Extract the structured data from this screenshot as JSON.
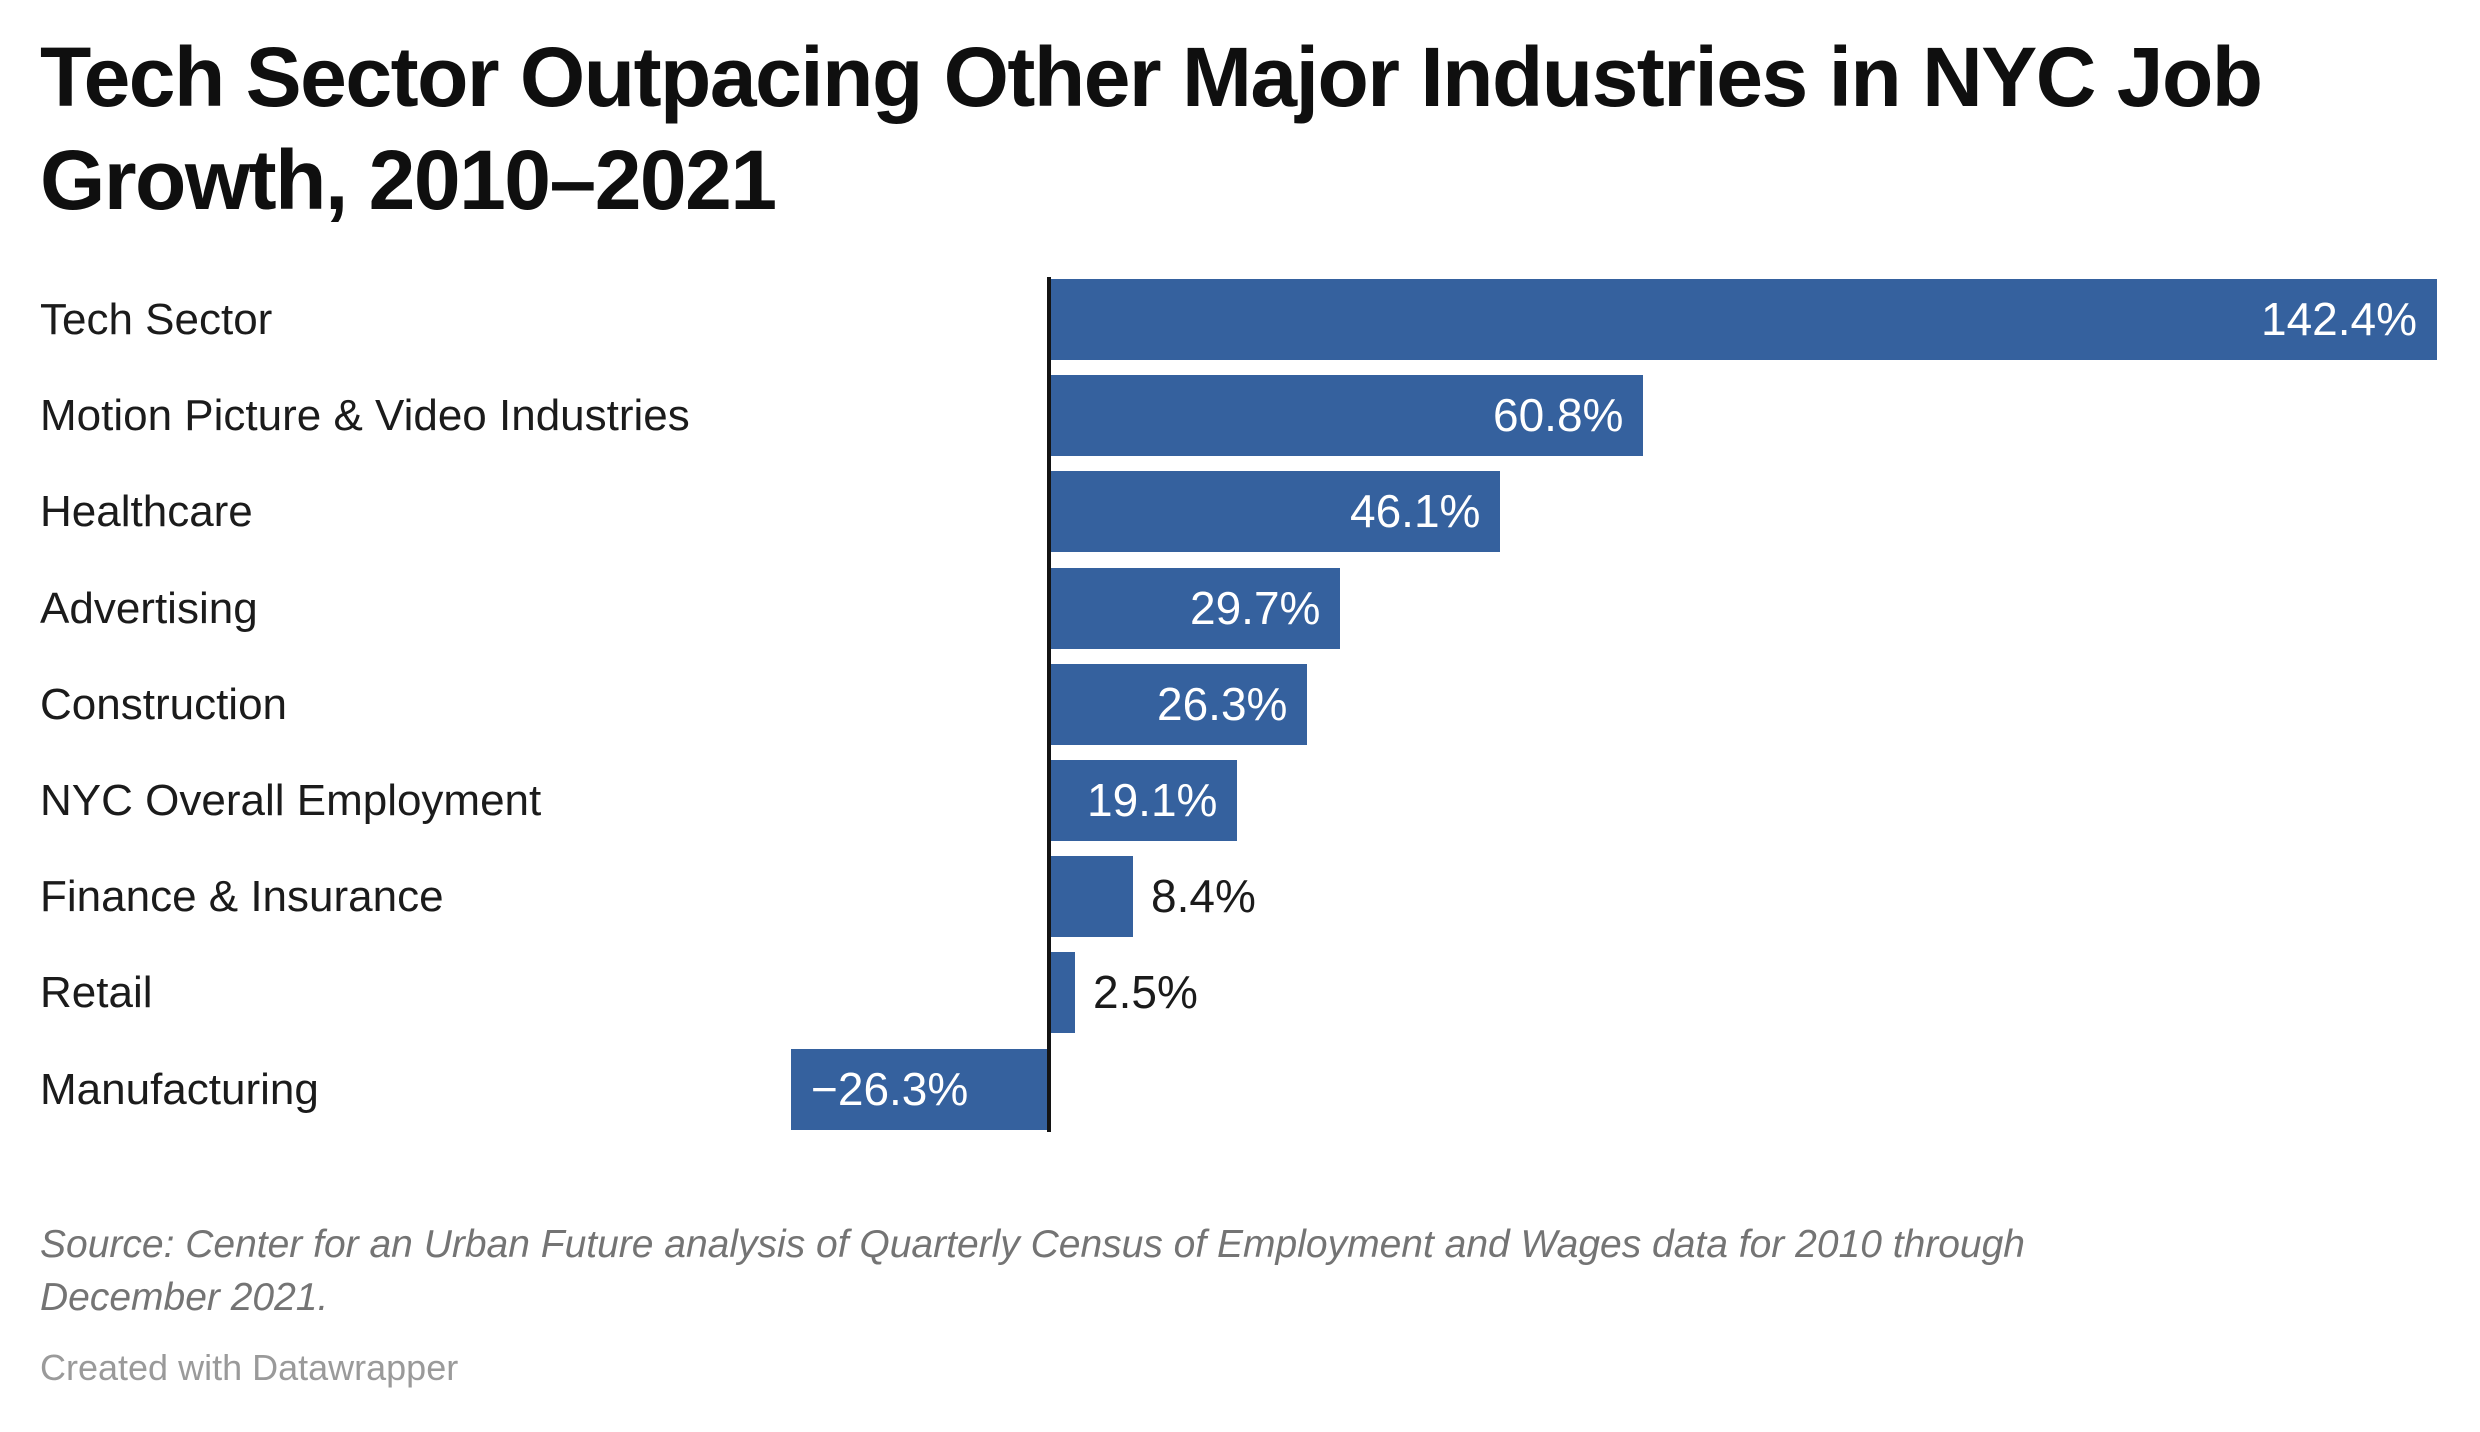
{
  "page": {
    "background": "#ffffff"
  },
  "chart_data": {
    "type": "bar",
    "orientation": "horizontal",
    "title": "Tech Sector Outpacing Other Major Industries in NYC Job\nGrowth, 2010–2021",
    "categories": [
      "Tech Sector",
      "Motion Picture & Video Industries",
      "Healthcare",
      "Advertising",
      "Construction",
      "NYC Overall Employment",
      "Finance & Insurance",
      "Retail",
      "Manufacturing"
    ],
    "values": [
      142.4,
      60.8,
      46.1,
      29.7,
      26.3,
      19.1,
      8.4,
      2.5,
      -26.3
    ],
    "value_labels": [
      "142.4%",
      "60.8%",
      "46.1%",
      "29.7%",
      "26.3%",
      "19.1%",
      "8.4%",
      "2.5%",
      "−26.3%"
    ],
    "xlabel": "",
    "ylabel": "",
    "xlim": [
      -26.3,
      142.4
    ],
    "grid": false,
    "legend": false,
    "bar_color": "#35619e",
    "axis_color": "#141414"
  },
  "colors": {
    "bar": "#35619e",
    "axis": "#141414",
    "value_inside": "#ffffff",
    "value_outside": "#1b1b1b",
    "category_label": "#1b1b1b",
    "title": "#0f0f0f",
    "source": "#747474",
    "credit": "#9a9a9a",
    "background": "#ffffff"
  },
  "footer": {
    "source": "Source: Center for an Urban Future analysis of Quarterly Census of Employment and Wages data for 2010 through\nDecember 2021.",
    "credit": "Created with Datawrapper"
  }
}
